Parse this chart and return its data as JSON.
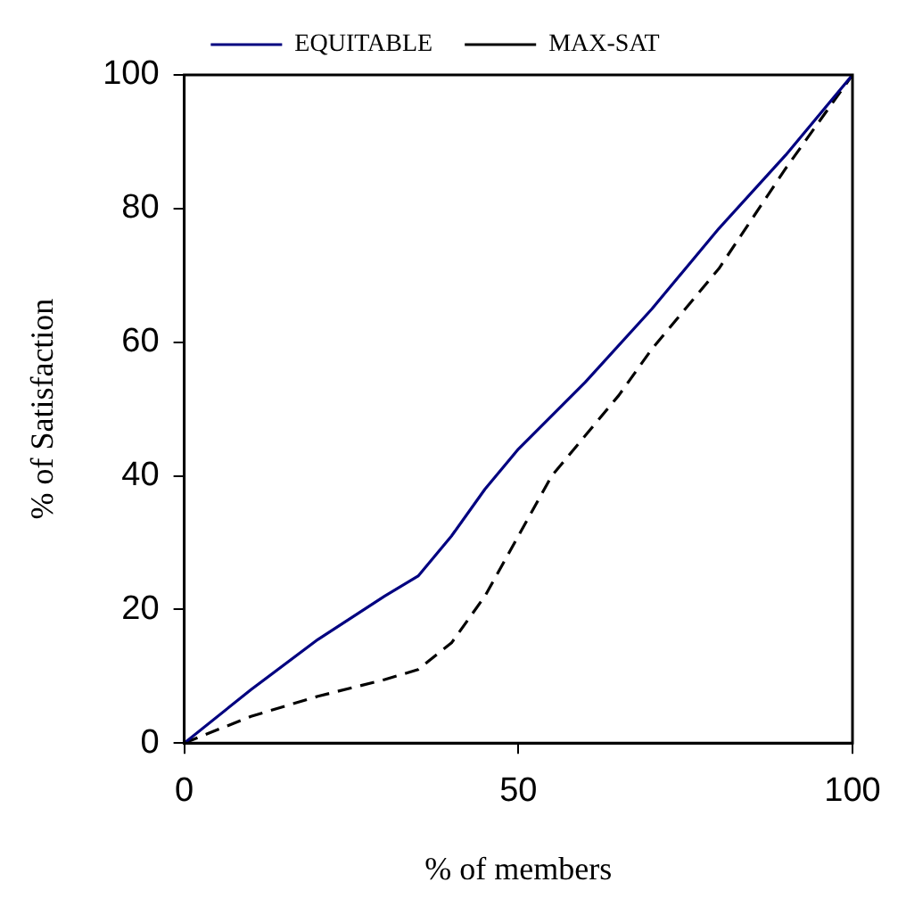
{
  "chart_data": {
    "type": "line",
    "xlabel": "% of members",
    "ylabel": "% of Satisfaction",
    "xlim": [
      0,
      100
    ],
    "xticks": [
      0,
      50,
      100
    ],
    "ylim": [
      0,
      100
    ],
    "yticks": [
      0,
      20,
      40,
      60,
      80,
      100
    ],
    "grid": false,
    "legend": "top",
    "marker": "none",
    "series": [
      {
        "name": "EQUITABLE",
        "color": "#000080",
        "line_style": "solid",
        "x": [
          0,
          10,
          20,
          30,
          35,
          40,
          45,
          50,
          60,
          70,
          80,
          90,
          100
        ],
        "values": [
          0,
          8,
          15.5,
          22,
          25,
          31,
          38,
          44,
          54,
          65,
          77,
          88,
          100
        ]
      },
      {
        "name": "MAX-SAT",
        "color": "#000000",
        "line_style": "dashed",
        "x": [
          0,
          10,
          20,
          30,
          35,
          40,
          45,
          50,
          55,
          60,
          65,
          70,
          80,
          90,
          100
        ],
        "values": [
          0,
          4,
          7,
          9.5,
          11,
          15,
          22,
          31,
          40,
          46,
          52,
          59,
          71,
          86,
          100
        ]
      }
    ]
  }
}
